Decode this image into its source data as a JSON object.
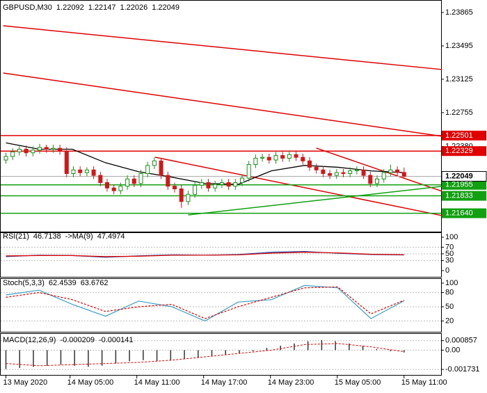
{
  "chart_data": [
    {
      "type": "candlestick",
      "title": "GBPUSD,M30",
      "open": [
        1.2223,
        1.2227,
        1.2232,
        1.2235,
        1.2231,
        1.2234,
        1.2237,
        1.2235,
        1.2236,
        1.2233,
        1.2208,
        1.2212,
        1.2209,
        1.2212,
        1.2206,
        1.2198,
        1.2192,
        1.2189,
        1.2194,
        1.2202,
        1.2197,
        1.2208,
        1.2217,
        1.2222,
        1.2206,
        1.2194,
        1.2191,
        1.2177,
        1.2185,
        1.2195,
        1.2198,
        1.2192,
        1.2196,
        1.2198,
        1.2194,
        1.2198,
        1.2203,
        1.2218,
        1.2225,
        1.2226,
        1.2223,
        1.2228,
        1.2225,
        1.2229,
        1.2226,
        1.2222,
        1.2215,
        1.2212,
        1.2208,
        1.2206,
        1.2209,
        1.2208,
        1.2211,
        1.2212,
        1.2206,
        1.2197,
        1.2202,
        1.2209,
        1.2212,
        1.22092
      ],
      "high": [
        1.2231,
        1.2236,
        1.2239,
        1.2239,
        1.2238,
        1.2241,
        1.224,
        1.224,
        1.224,
        1.2237,
        1.2216,
        1.2216,
        1.2215,
        1.2216,
        1.221,
        1.2202,
        1.2196,
        1.2198,
        1.2206,
        1.2206,
        1.2212,
        1.2221,
        1.2226,
        1.2225,
        1.221,
        1.2198,
        1.2195,
        1.2189,
        1.2199,
        1.2202,
        1.2202,
        1.22,
        1.2202,
        1.2202,
        1.2202,
        1.2207,
        1.2222,
        1.2229,
        1.223,
        1.223,
        1.2232,
        1.2232,
        1.2233,
        1.2233,
        1.223,
        1.2226,
        1.2219,
        1.2216,
        1.2212,
        1.2213,
        1.2213,
        1.2215,
        1.2216,
        1.2216,
        1.221,
        1.2206,
        1.2213,
        1.2218,
        1.2216,
        1.22147
      ],
      "low": [
        1.2219,
        1.2223,
        1.2228,
        1.2227,
        1.2227,
        1.223,
        1.2231,
        1.2231,
        1.2229,
        1.2204,
        1.2204,
        1.2205,
        1.2205,
        1.2202,
        1.2194,
        1.2188,
        1.2185,
        1.2185,
        1.219,
        1.2193,
        1.2193,
        1.2204,
        1.2213,
        1.2202,
        1.219,
        1.2187,
        1.217,
        1.2173,
        1.2181,
        1.2191,
        1.2188,
        1.2188,
        1.2192,
        1.219,
        1.219,
        1.2194,
        1.2199,
        1.2214,
        1.2221,
        1.2219,
        1.2219,
        1.2221,
        1.2221,
        1.2222,
        1.2218,
        1.2211,
        1.2208,
        1.2204,
        1.2202,
        1.2202,
        1.2204,
        1.2204,
        1.2207,
        1.2202,
        1.2193,
        1.2193,
        1.2198,
        1.2205,
        1.2205,
        1.22026
      ],
      "close": [
        1.2227,
        1.2232,
        1.2235,
        1.2231,
        1.2234,
        1.2237,
        1.2235,
        1.2236,
        1.2233,
        1.2208,
        1.2212,
        1.2209,
        1.2212,
        1.2206,
        1.2198,
        1.2192,
        1.2189,
        1.2194,
        1.2202,
        1.2197,
        1.2208,
        1.2217,
        1.2222,
        1.2206,
        1.2194,
        1.2191,
        1.2177,
        1.2185,
        1.2195,
        1.2198,
        1.2192,
        1.2196,
        1.2198,
        1.2194,
        1.2198,
        1.2203,
        1.2218,
        1.2225,
        1.2226,
        1.2223,
        1.2228,
        1.2225,
        1.2229,
        1.2226,
        1.2222,
        1.2215,
        1.2212,
        1.2208,
        1.2206,
        1.2209,
        1.2208,
        1.2211,
        1.2212,
        1.2206,
        1.2197,
        1.2202,
        1.2209,
        1.2212,
        1.22092,
        1.22049
      ],
      "ma": [
        1.2242,
        1.2235,
        1.2235,
        1.222,
        1.221,
        1.2204,
        1.2197,
        1.2196,
        1.2211,
        1.2217,
        1.2215,
        1.2211,
        1.2209
      ],
      "ylim": [
        1.21444,
        1.23988
      ],
      "yticks": [
        1.23865,
        1.23495,
        1.23125,
        1.22755,
        {
          "value": 1.2238,
          "label": "1.22380"
        }
      ],
      "levels": [
        {
          "value": 1.22501,
          "color": "#e00000"
        },
        {
          "value": 1.22329,
          "color": "#e00000"
        },
        {
          "value": 1.21955,
          "color": "#10a010"
        },
        {
          "value": 1.21833,
          "color": "#10a010"
        },
        {
          "value": 1.2164,
          "label": "1.21640",
          "color": "#10a010"
        }
      ],
      "trendlines": [
        {
          "color": "#e00000",
          "x": [
            -0.4,
            64.6
          ],
          "y": [
            1.23718,
            1.23233
          ]
        },
        {
          "color": "#e00000",
          "x": [
            -0.4,
            64.6
          ],
          "y": [
            1.23194,
            1.22493
          ]
        },
        {
          "color": "#e00000",
          "x": [
            22.1,
            64.6
          ],
          "y": [
            1.22261,
            1.21614
          ]
        },
        {
          "color": "#e00000",
          "x": [
            46,
            64.6
          ],
          "y": [
            1.22362,
            1.21884
          ]
        },
        {
          "color": "#10a010",
          "x": [
            27,
            64.6
          ],
          "y": [
            1.21621,
            1.21938
          ]
        }
      ],
      "xticks": [
        {
          "value": 0,
          "label": "13 May 2020"
        },
        {
          "value": 9.5,
          "label": "14 May 05:00"
        },
        {
          "value": 19.4,
          "label": "14 May 11:00"
        },
        {
          "value": 29.3,
          "label": "14 May 17:00"
        },
        {
          "value": 39.2,
          "label": "14 May 23:00"
        },
        {
          "value": 49.1,
          "label": "15 May 05:00"
        },
        {
          "value": 59,
          "label": "15 May 11:00"
        }
      ]
    },
    {
      "type": "line",
      "series": [
        {
          "name": "RSI(21)",
          "color": "#1e3c96",
          "values": [
            42,
            46,
            45,
            40,
            44,
            47,
            46,
            48,
            55,
            57,
            52,
            48,
            46.7138
          ]
        },
        {
          "name": "->MA(9)",
          "color": "#e00000",
          "values": [
            44,
            45,
            45,
            42,
            43,
            46,
            46,
            47,
            52,
            55,
            53,
            49,
            47.4974
          ]
        }
      ],
      "ylim": [
        0,
        100
      ],
      "yticks": [
        100,
        70,
        50,
        30,
        0
      ]
    },
    {
      "type": "line",
      "series": [
        {
          "name": "Stoch(5,3,3)",
          "color": "#3aa0c8",
          "values": [
            75,
            85,
            55,
            30,
            62,
            50,
            20,
            60,
            65,
            95,
            90,
            25,
            62.4539
          ]
        },
        {
          "color": "#e00000",
          "dashed": true,
          "values": [
            70,
            80,
            65,
            40,
            50,
            55,
            25,
            50,
            70,
            90,
            92,
            35,
            63.6762
          ]
        }
      ],
      "ylim": [
        0,
        100
      ],
      "yticks": [
        100,
        80,
        50,
        20
      ]
    },
    {
      "type": "macd",
      "series": [
        {
          "name": "MACD(12,26,9)",
          "color": "#333333",
          "values": [
            -0.0017,
            -0.0016,
            -0.0015,
            -0.0014,
            -0.0013,
            -0.0014,
            -0.0015,
            -0.0014,
            -0.0012,
            -0.001,
            -0.0009,
            -0.001,
            -0.0009,
            -0.0008,
            -0.0007,
            -0.0005,
            -0.0004,
            -0.0003,
            -0.0001,
            0.0002,
            0.0004,
            0.0006,
            0.0008,
            0.0009,
            0.0008,
            0.0006,
            0.0004,
            0.0001,
            -0.0001,
            -0.000209
          ]
        },
        {
          "color": "#e00000",
          "dashed": true,
          "values": [
            -0.0012,
            -0.0014,
            -0.0013,
            -0.0012,
            -0.0011,
            -0.0009,
            -0.0006,
            -0.0003,
            0,
            0.0005,
            0.0006,
            0.0003,
            -0.000141
          ]
        }
      ],
      "ylim": [
        -0.0021,
        0.0014
      ],
      "yticks": [
        0.000857,
        {
          "value": 0,
          "label": "0.00"
        },
        -0.001731
      ]
    }
  ]
}
